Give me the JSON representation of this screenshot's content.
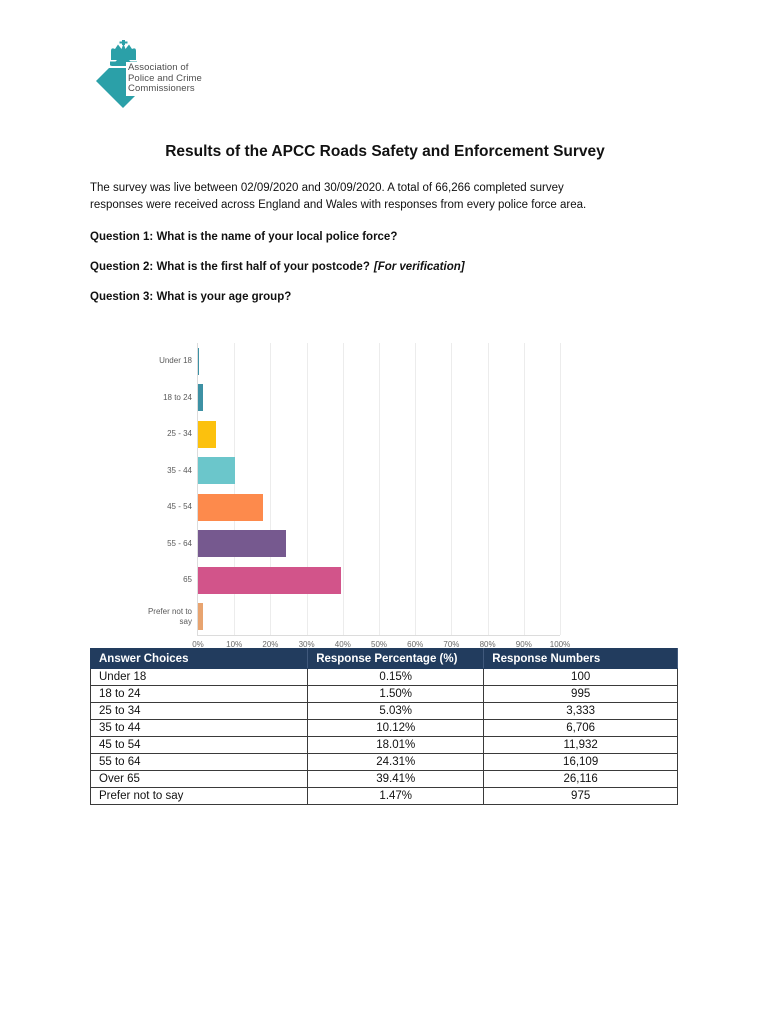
{
  "logo": {
    "text_lines": [
      "Association of",
      "Police and Crime",
      "Commissioners"
    ],
    "color": "#2BA0A8"
  },
  "content": {
    "title": "Results of the APCC Roads Safety and Enforcement Survey",
    "intro": "The survey was live between 02/09/2020 and 30/09/2020. A total of 66,266 completed survey responses were received across England and Wales with responses from every police force area.",
    "questions": [
      {
        "label": "Question 1: What is the name of your local police force?",
        "note": ""
      },
      {
        "label": "Question 2: What is the first half of your postcode?",
        "note": "[For verification]"
      },
      {
        "label": "Question 3: What is your age group?",
        "note": ""
      }
    ]
  },
  "chart_data": {
    "type": "bar",
    "orientation": "horizontal",
    "title": "",
    "xlabel": "",
    "ylabel": "",
    "categories": [
      "Under 18",
      "18 to 24",
      "25 - 34",
      "35 - 44",
      "45 - 54",
      "55 - 64",
      "65",
      "Prefer not to say"
    ],
    "values": [
      0.15,
      1.5,
      5.03,
      10.12,
      18.01,
      24.31,
      39.41,
      1.47
    ],
    "bar_colors": [
      "#3D91A4",
      "#3D91A4",
      "#FCC10D",
      "#6BC6CB",
      "#FD8A4C",
      "#76598F",
      "#D2548A",
      "#E8A470"
    ],
    "xlim": [
      0,
      100
    ],
    "x_tick_labels": [
      "0%",
      "10%",
      "20%",
      "30%",
      "40%",
      "50%",
      "60%",
      "70%",
      "80%",
      "90%",
      "100%"
    ],
    "grid": true,
    "legend": false
  },
  "table": {
    "header_bg": "#223C5E",
    "header_color": "#FFFFFF",
    "headers": [
      "Answer Choices",
      "Response Percentage (%)",
      "Response Numbers"
    ],
    "rows": [
      [
        "Under 18",
        "0.15%",
        "100"
      ],
      [
        "18 to 24",
        "1.50%",
        "995"
      ],
      [
        "25 to 34",
        "5.03%",
        "3,333"
      ],
      [
        "35 to 44",
        "10.12%",
        "6,706"
      ],
      [
        "45 to 54",
        "18.01%",
        "11,932"
      ],
      [
        "55 to 64",
        "24.31%",
        "16,109"
      ],
      [
        "Over 65",
        "39.41%",
        "26,116"
      ],
      [
        "Prefer not to say",
        "1.47%",
        "975"
      ]
    ]
  }
}
